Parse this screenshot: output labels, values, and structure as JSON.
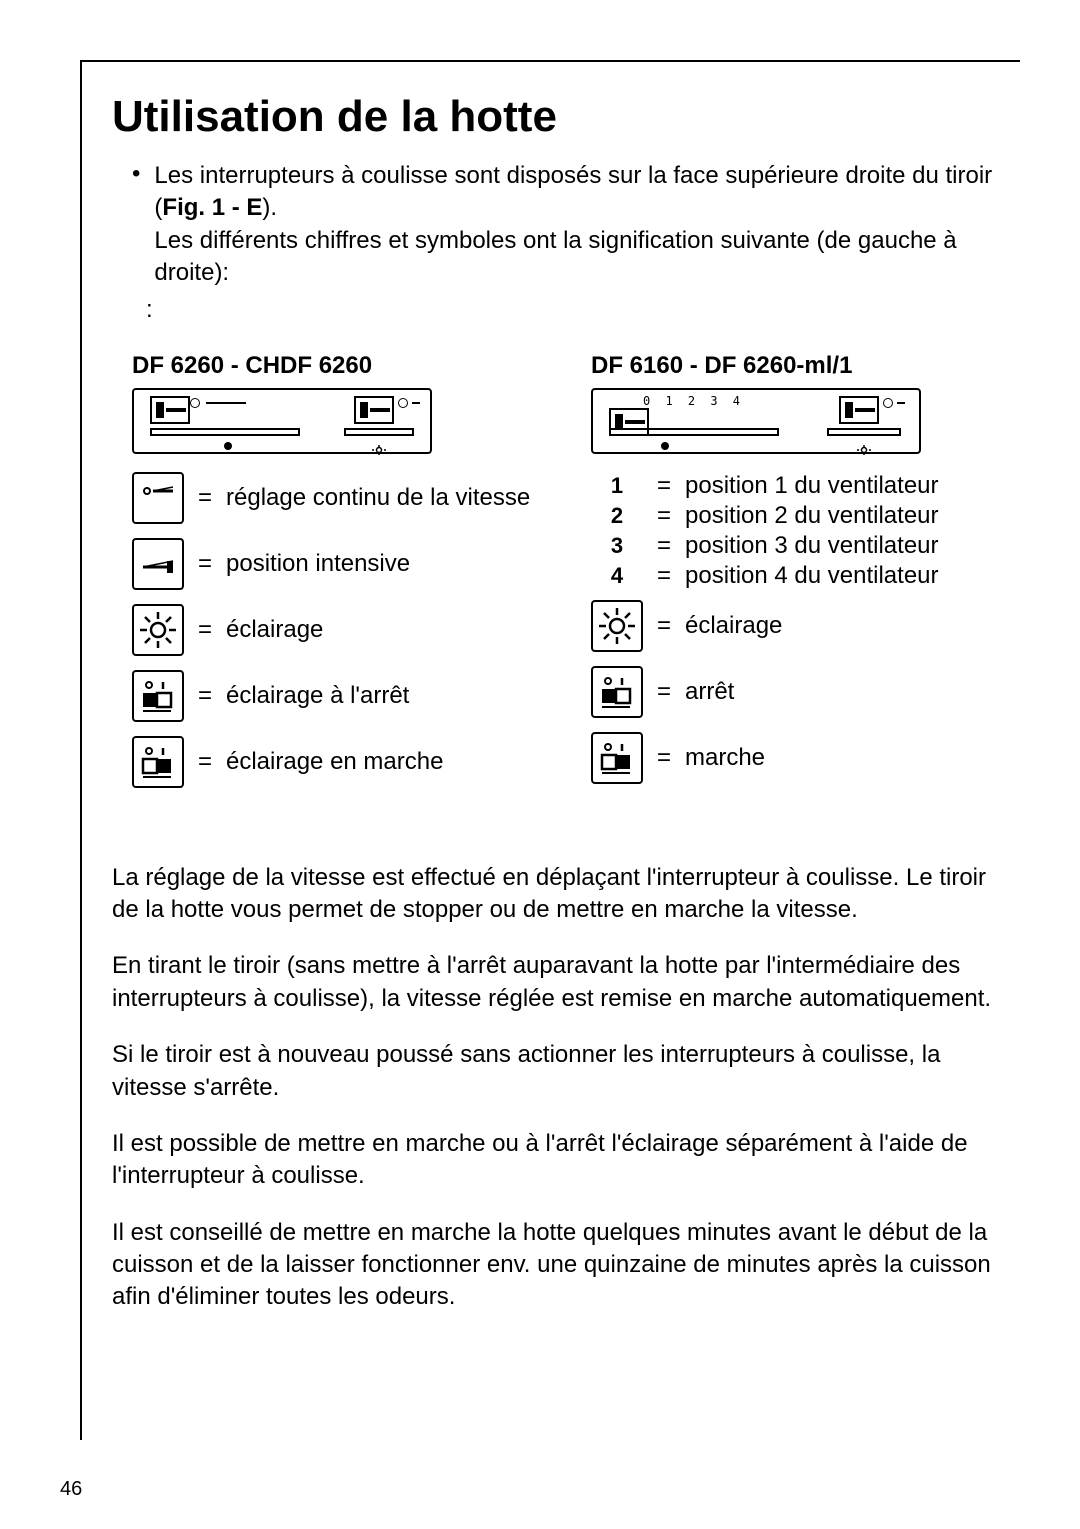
{
  "title": "Utilisation de la hotte",
  "intro": {
    "line1a": "Les interrupteurs à coulisse sont disposés sur la face supérieure droite du tiroir  (",
    "figref": "Fig. 1 - E",
    "line1b": ").",
    "line2": "Les différents chiffres et symboles ont la signification suivante (de gauche à droite):",
    "colon": ":"
  },
  "left_model": {
    "title": "DF 6260 - CHDF 6260",
    "items": [
      {
        "icon": "slider-continuous",
        "label": "réglage continu de la vitesse"
      },
      {
        "icon": "slider-intensive",
        "label": "position intensive"
      },
      {
        "icon": "light",
        "label": "éclairage"
      },
      {
        "icon": "switch-off",
        "label": "éclairage à l'arrêt"
      },
      {
        "icon": "switch-on",
        "label": "éclairage en marche"
      }
    ]
  },
  "right_model": {
    "title": "DF 6160  -  DF 6260-ml/1",
    "panel_numbers": "0 1 2 3 4",
    "items": [
      {
        "num": "1",
        "label": "position 1 du ventilateur"
      },
      {
        "num": "2",
        "label": "position 2 du ventilateur"
      },
      {
        "num": "3",
        "label": "position 3 du ventilateur"
      },
      {
        "num": "4",
        "label": "position 4 du ventilateur"
      }
    ],
    "icon_items": [
      {
        "icon": "light",
        "label": "éclairage"
      },
      {
        "icon": "switch-off",
        "label": "arrêt"
      },
      {
        "icon": "switch-on",
        "label": "marche"
      }
    ]
  },
  "paragraphs": [
    "La réglage de la vitesse est effectué en déplaçant l'interrupteur à coulisse. Le tiroir de la hotte vous permet de stopper ou de mettre en marche la vitesse.",
    "En tirant le tiroir (sans mettre à l'arrêt auparavant la hotte par l'intermédiaire des interrupteurs à coulisse), la vitesse réglée est remise en marche automatiquement.",
    "Si le tiroir est à nouveau poussé sans actionner les interrupteurs à coulisse, la vitesse s'arrête.",
    "Il est possible de mettre en marche ou à l'arrêt l'éclairage séparément à l'aide de l'interrupteur à coulisse.",
    " Il est conseillé de mettre en marche la hotte quelques minutes avant le début de la cuisson et de la laisser fonctionner env. une quinzaine de minutes après la cuisson afin d'éliminer toutes les odeurs."
  ],
  "page_number": "46",
  "colors": {
    "text": "#000000",
    "bg": "#ffffff"
  }
}
